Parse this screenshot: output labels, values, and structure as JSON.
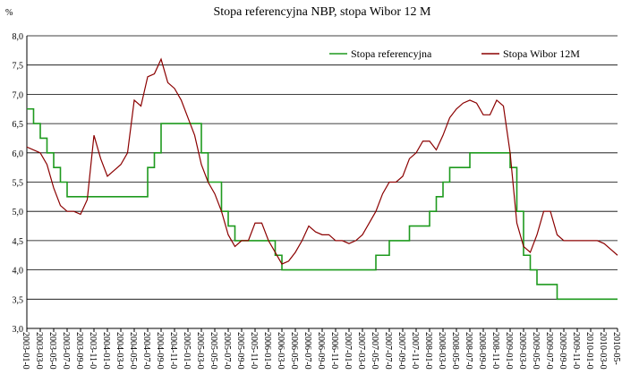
{
  "chart_data": {
    "type": "line",
    "title": "Stopa referencyjna NBP, stopa Wibor 12 M",
    "y_unit_label": "%",
    "legend": "top-right",
    "grid": true,
    "x": [
      "2003-01",
      "2003-02",
      "2003-03",
      "2003-04",
      "2003-05",
      "2003-06",
      "2003-07",
      "2003-08",
      "2003-09",
      "2003-10",
      "2003-11",
      "2003-12",
      "2004-01",
      "2004-02",
      "2004-03",
      "2004-04",
      "2004-05",
      "2004-06",
      "2004-07",
      "2004-08",
      "2004-09",
      "2004-10",
      "2004-11",
      "2004-12",
      "2005-01",
      "2005-02",
      "2005-03",
      "2005-04",
      "2005-05",
      "2005-06",
      "2005-07",
      "2005-08",
      "2005-09",
      "2005-10",
      "2005-11",
      "2005-12",
      "2006-01",
      "2006-02",
      "2006-03",
      "2006-04",
      "2006-05",
      "2006-06",
      "2006-07",
      "2006-08",
      "2006-09",
      "2006-10",
      "2006-11",
      "2006-12",
      "2007-01",
      "2007-02",
      "2007-03",
      "2007-04",
      "2007-05",
      "2007-06",
      "2007-07",
      "2007-08",
      "2007-09",
      "2007-10",
      "2007-11",
      "2007-12",
      "2008-01",
      "2008-02",
      "2008-03",
      "2008-04",
      "2008-05",
      "2008-06",
      "2008-07",
      "2008-08",
      "2008-09",
      "2008-10",
      "2008-11",
      "2008-12",
      "2009-01",
      "2009-02",
      "2009-03",
      "2009-04",
      "2009-05",
      "2009-06",
      "2009-07",
      "2009-08",
      "2009-09",
      "2009-10",
      "2009-11",
      "2009-12",
      "2010-01",
      "2010-02",
      "2010-03",
      "2010-04",
      "2010-05"
    ],
    "xticks": [
      {
        "value": "2003-01",
        "label": "2003-01-0"
      },
      {
        "value": "2003-03",
        "label": "2003-03-0"
      },
      {
        "value": "2003-05",
        "label": "2003-05-0"
      },
      {
        "value": "2003-07",
        "label": "2003-07-0"
      },
      {
        "value": "2003-09",
        "label": "2003-09-0"
      },
      {
        "value": "2003-11",
        "label": "2003-11-0"
      },
      {
        "value": "2004-01",
        "label": "2004-01-0"
      },
      {
        "value": "2004-03",
        "label": "2004-03-0"
      },
      {
        "value": "2004-05",
        "label": "2004-05-0"
      },
      {
        "value": "2004-07",
        "label": "2004-07-0"
      },
      {
        "value": "2004-09",
        "label": "2004-09-0"
      },
      {
        "value": "2004-11",
        "label": "2004-11-0"
      },
      {
        "value": "2005-01",
        "label": "2005-01-0"
      },
      {
        "value": "2005-03",
        "label": "2005-03-0"
      },
      {
        "value": "2005-05",
        "label": "2005-05-0"
      },
      {
        "value": "2005-07",
        "label": "2005-07-0"
      },
      {
        "value": "2005-09",
        "label": "2005-09-0"
      },
      {
        "value": "2005-11",
        "label": "2005-11-0"
      },
      {
        "value": "2006-01",
        "label": "2006-01-0"
      },
      {
        "value": "2006-03",
        "label": "2006-03-0"
      },
      {
        "value": "2006-05",
        "label": "2006-05-0"
      },
      {
        "value": "2006-07",
        "label": "2006-07-0"
      },
      {
        "value": "2006-09",
        "label": "2006-09-0"
      },
      {
        "value": "2006-11",
        "label": "2006-11-0"
      },
      {
        "value": "2007-01",
        "label": "2007-01-0"
      },
      {
        "value": "2007-03",
        "label": "2007-03-0"
      },
      {
        "value": "2007-05",
        "label": "2007-05-0"
      },
      {
        "value": "2007-07",
        "label": "2007-07-0"
      },
      {
        "value": "2007-09",
        "label": "2007-09-0"
      },
      {
        "value": "2007-11",
        "label": "2007-11-0"
      },
      {
        "value": "2008-01",
        "label": "2008-01-0"
      },
      {
        "value": "2008-03",
        "label": "2008-03-0"
      },
      {
        "value": "2008-05",
        "label": "2008-05-0"
      },
      {
        "value": "2008-07",
        "label": "2008-07-0"
      },
      {
        "value": "2008-09",
        "label": "2008-09-0"
      },
      {
        "value": "2008-11",
        "label": "2008-11-0"
      },
      {
        "value": "2009-01",
        "label": "2009-01-0"
      },
      {
        "value": "2009-03",
        "label": "2009-03-0"
      },
      {
        "value": "2009-05",
        "label": "2009-05-0"
      },
      {
        "value": "2009-07",
        "label": "2009-07-0"
      },
      {
        "value": "2009-09",
        "label": "2009-09-0"
      },
      {
        "value": "2009-11",
        "label": "2009-11-0"
      },
      {
        "value": "2010-01",
        "label": "2010-01-0"
      },
      {
        "value": "2010-03",
        "label": "2010-03-0"
      },
      {
        "value": "2010-05",
        "label": "2010-05-"
      }
    ],
    "ylim": [
      3,
      8
    ],
    "yticks": [
      {
        "value": 3,
        "label": "3,0"
      },
      {
        "value": 3.5,
        "label": "3,5"
      },
      {
        "value": 4,
        "label": "4,0"
      },
      {
        "value": 4.5,
        "label": "4,5"
      },
      {
        "value": 5,
        "label": "5,0"
      },
      {
        "value": 5.5,
        "label": "5,5"
      },
      {
        "value": 6,
        "label": "6,0"
      },
      {
        "value": 6.5,
        "label": "6,5"
      },
      {
        "value": 7,
        "label": "7,0"
      },
      {
        "value": 7.5,
        "label": "7,5"
      },
      {
        "value": 8,
        "label": "8,0"
      }
    ],
    "series": [
      {
        "name": "Stopa referencyjna",
        "color": "#1e9a1e",
        "step": true,
        "values": [
          6.75,
          6.5,
          6.25,
          6,
          5.75,
          5.5,
          5.25,
          5.25,
          5.25,
          5.25,
          5.25,
          5.25,
          5.25,
          5.25,
          5.25,
          5.25,
          5.25,
          5.25,
          5.75,
          6,
          6.5,
          6.5,
          6.5,
          6.5,
          6.5,
          6.5,
          6,
          5.5,
          5.5,
          5,
          4.75,
          4.5,
          4.5,
          4.5,
          4.5,
          4.5,
          4.5,
          4.25,
          4,
          4,
          4,
          4,
          4,
          4,
          4,
          4,
          4,
          4,
          4,
          4,
          4,
          4,
          4.25,
          4.25,
          4.5,
          4.5,
          4.5,
          4.75,
          4.75,
          4.75,
          5,
          5.25,
          5.5,
          5.75,
          5.75,
          5.75,
          6,
          6,
          6,
          6,
          6,
          6,
          5.75,
          5,
          4.25,
          4,
          3.75,
          3.75,
          3.75,
          3.5,
          3.5,
          3.5,
          3.5,
          3.5,
          3.5,
          3.5,
          3.5,
          3.5,
          3.5
        ]
      },
      {
        "name": "Stopa Wibor 12M",
        "color": "#8b0000",
        "values": [
          6.1,
          6.05,
          6,
          5.8,
          5.4,
          5.1,
          5,
          5,
          4.95,
          5.2,
          6.3,
          5.9,
          5.6,
          5.7,
          5.8,
          6,
          6.9,
          6.8,
          7.3,
          7.35,
          7.6,
          7.2,
          7.1,
          6.9,
          6.6,
          6.3,
          5.8,
          5.5,
          5.3,
          5,
          4.6,
          4.4,
          4.5,
          4.5,
          4.8,
          4.8,
          4.5,
          4.3,
          4.1,
          4.15,
          4.3,
          4.5,
          4.75,
          4.65,
          4.6,
          4.6,
          4.5,
          4.5,
          4.45,
          4.5,
          4.6,
          4.8,
          5,
          5.3,
          5.5,
          5.5,
          5.6,
          5.9,
          6,
          6.2,
          6.2,
          6.05,
          6.3,
          6.6,
          6.75,
          6.85,
          6.9,
          6.85,
          6.65,
          6.65,
          6.9,
          6.8,
          6,
          4.8,
          4.4,
          4.3,
          4.6,
          5,
          5,
          4.6,
          4.5,
          4.5,
          4.5,
          4.5,
          4.5,
          4.5,
          4.45,
          4.35,
          4.25
        ]
      }
    ]
  }
}
